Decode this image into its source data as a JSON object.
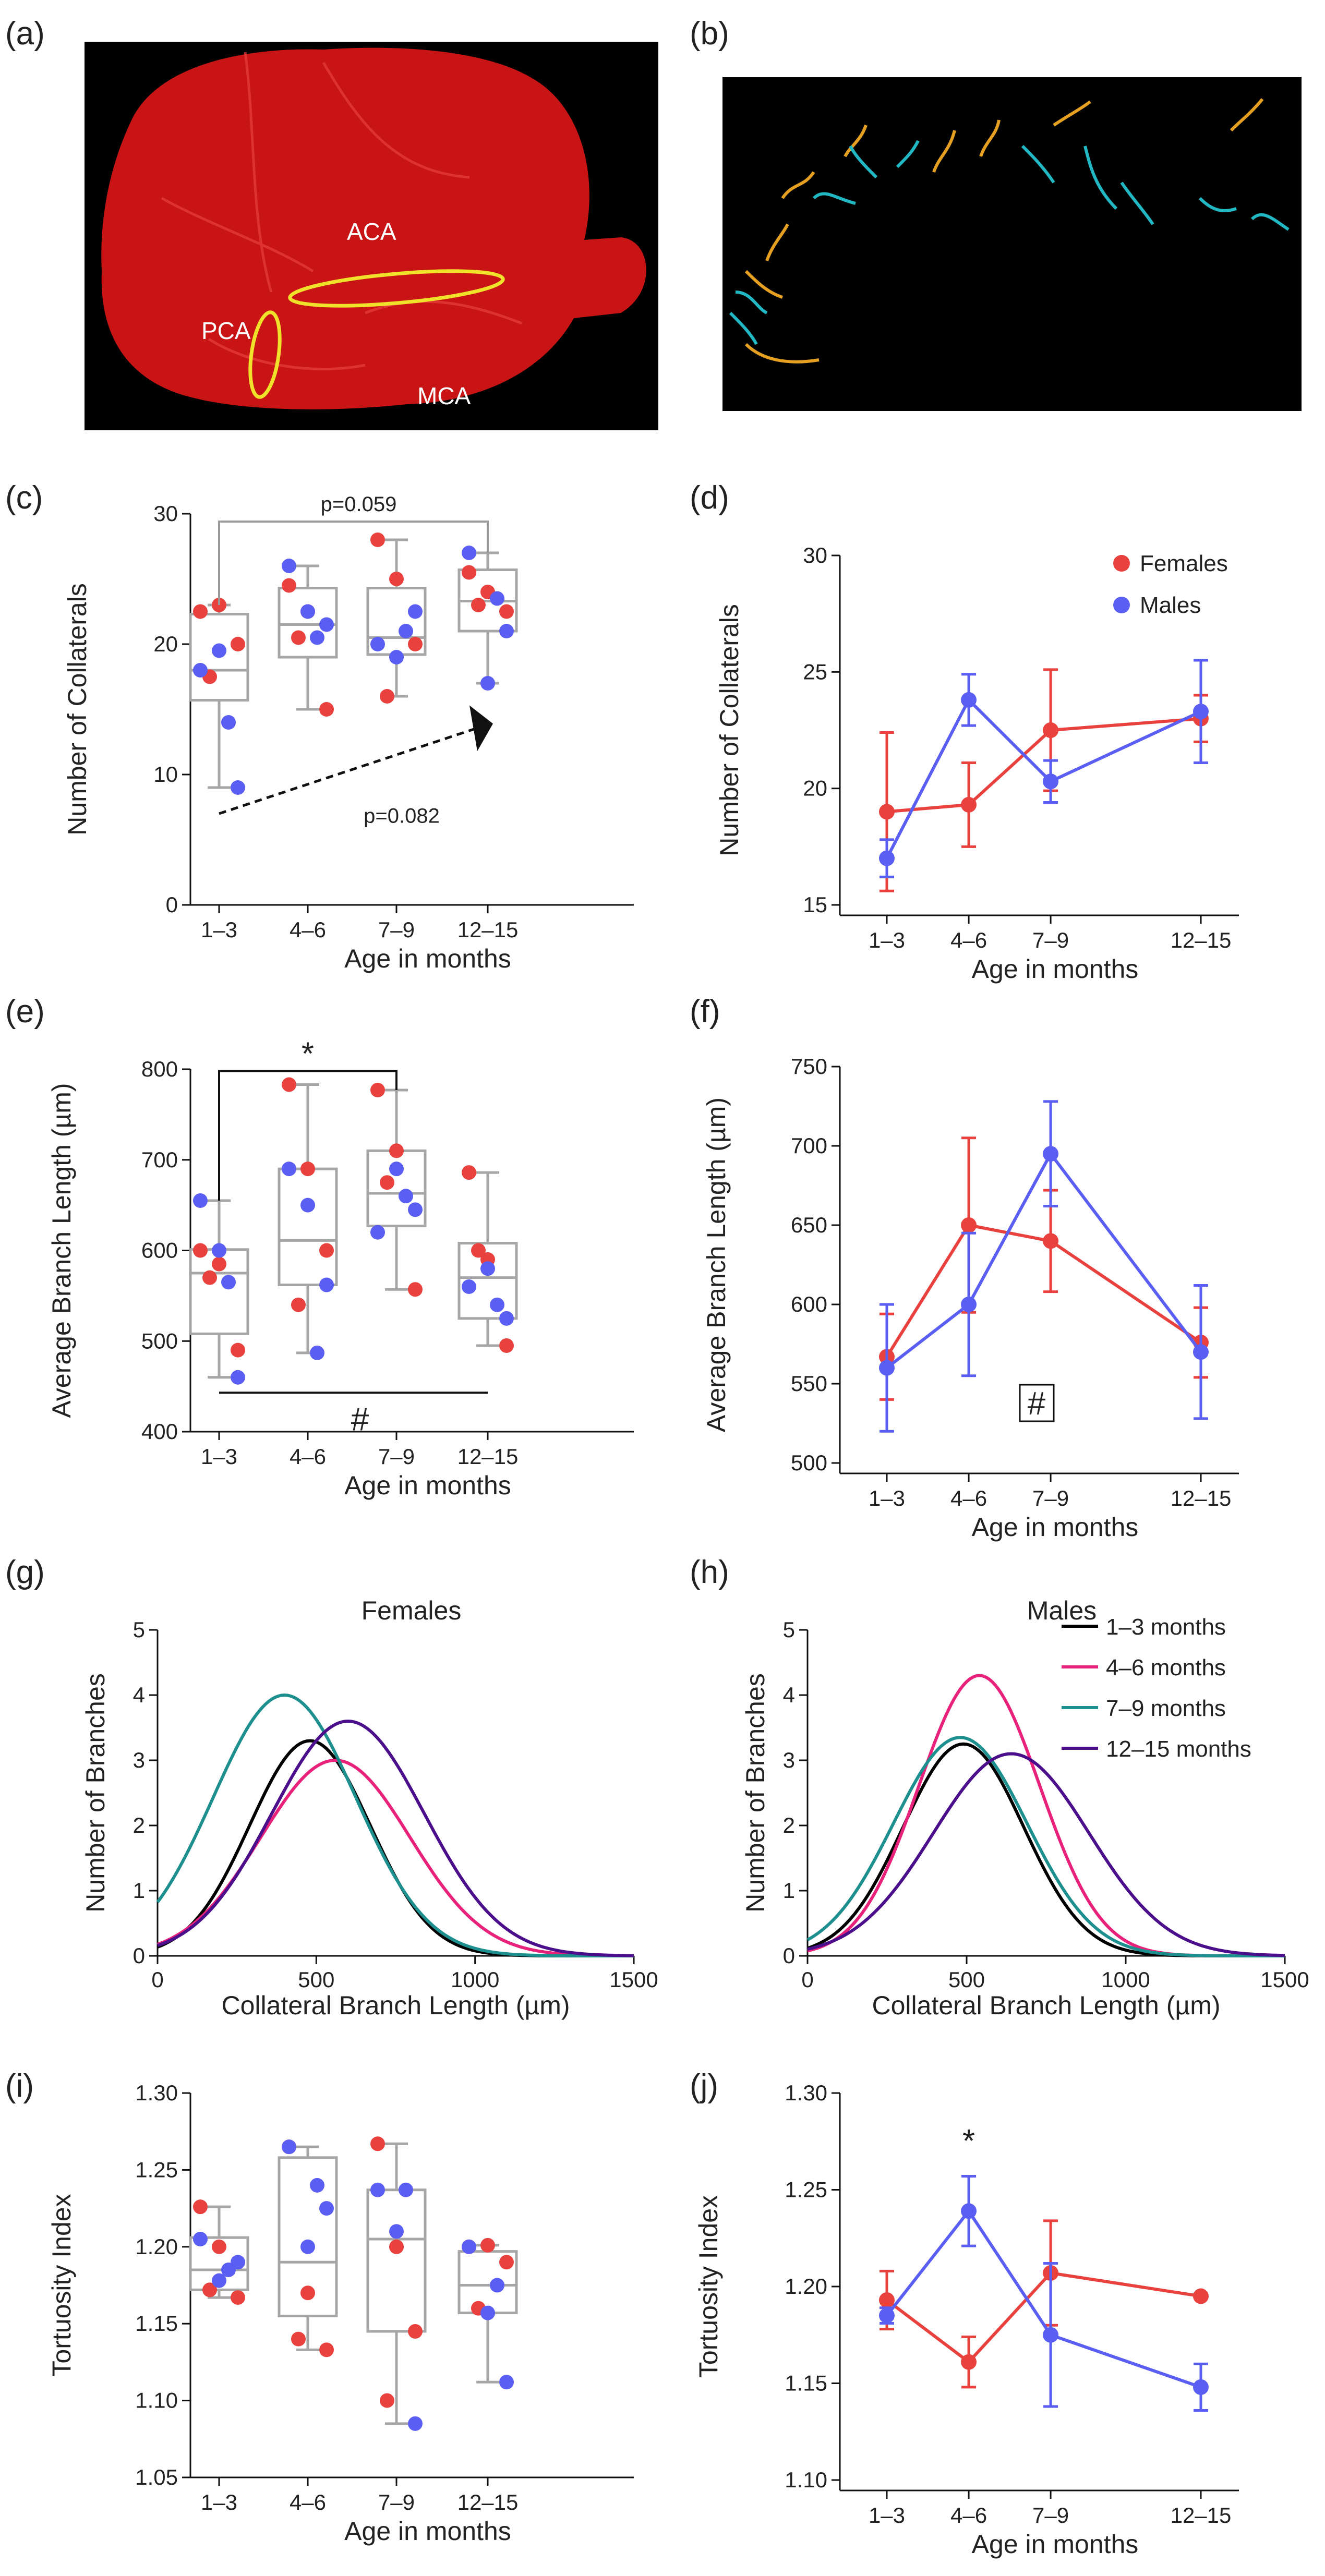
{
  "panels": {
    "a": {
      "label": "(a)",
      "regions": [
        "ACA",
        "PCA",
        "MCA"
      ]
    },
    "b": {
      "label": "(b)"
    }
  },
  "colors": {
    "female": "#e8413e",
    "male": "#5a5ef2",
    "box": "#a6a6a6",
    "bg_dark": "#000000",
    "tissue": "#c81414",
    "orange": "#e6a021",
    "cyan": "#21b7c3"
  },
  "chart_data": [
    {
      "id": "c",
      "label": "(c)",
      "type": "box_scatter",
      "xlabel": "Age in months",
      "ylabel": "Number of Collaterals",
      "categories": [
        "1–3",
        "4–6",
        "7–9",
        "12–15"
      ],
      "ylim": [
        0,
        30
      ],
      "yticks": [
        0,
        10,
        20,
        30
      ],
      "boxes": [
        {
          "min": 9,
          "q1": 15.7,
          "median": 18,
          "q3": 22.3,
          "max": 23
        },
        {
          "min": 15,
          "q1": 19,
          "median": 21.5,
          "q3": 24.3,
          "max": 26
        },
        {
          "min": 16,
          "q1": 19.2,
          "median": 20.5,
          "q3": 24.3,
          "max": 28
        },
        {
          "min": 17,
          "q1": 21,
          "median": 23.3,
          "q3": 25.7,
          "max": 27
        }
      ],
      "points": {
        "female": [
          [
            22.5,
            23,
            20,
            17.5
          ],
          [
            24.5,
            22.5,
            15,
            20.5
          ],
          [
            28,
            25,
            20,
            16
          ],
          [
            25.5,
            24,
            22.5,
            23
          ]
        ],
        "male": [
          [
            18,
            14,
            9,
            19.5
          ],
          [
            26,
            20.5,
            21.5,
            22.5
          ],
          [
            20,
            21,
            22.5,
            19
          ],
          [
            27,
            23.5,
            21,
            17
          ]
        ]
      },
      "annotations": {
        "bracket_text": "p=0.059",
        "trend_text": "p=0.082"
      }
    },
    {
      "id": "d",
      "label": "(d)",
      "type": "line",
      "xlabel": "Age in months",
      "ylabel": "Number of Collaterals",
      "categories": [
        "1–3",
        "4–6",
        "7–9",
        "12–15"
      ],
      "x": [
        2,
        5,
        8,
        13.5
      ],
      "ylim": [
        15,
        30
      ],
      "yticks": [
        15,
        20,
        25,
        30
      ],
      "series": [
        {
          "name": "Females",
          "color": "#e8413e",
          "values": [
            19,
            19.3,
            22.5,
            23
          ],
          "err": [
            3.4,
            1.8,
            2.6,
            1
          ]
        },
        {
          "name": "Males",
          "color": "#5a5ef2",
          "values": [
            17,
            23.8,
            20.3,
            23.3
          ],
          "err": [
            0.8,
            1.1,
            0.9,
            2.2
          ]
        }
      ],
      "legend": [
        "Females",
        "Males"
      ]
    },
    {
      "id": "e",
      "label": "(e)",
      "type": "box_scatter",
      "xlabel": "Age in months",
      "ylabel": "Average Branch Length (µm)",
      "categories": [
        "1–3",
        "4–6",
        "7–9",
        "12–15"
      ],
      "ylim": [
        400,
        800
      ],
      "yticks": [
        400,
        500,
        600,
        700,
        800
      ],
      "boxes": [
        {
          "min": 460,
          "q1": 508,
          "median": 575,
          "q3": 601,
          "max": 655
        },
        {
          "min": 487,
          "q1": 562,
          "median": 611,
          "q3": 690,
          "max": 783
        },
        {
          "min": 557,
          "q1": 627,
          "median": 663,
          "q3": 710,
          "max": 777
        },
        {
          "min": 495,
          "q1": 525,
          "median": 570,
          "q3": 608,
          "max": 686
        }
      ],
      "points": {
        "female": [
          [
            600,
            585,
            490,
            570
          ],
          [
            783,
            690,
            600,
            540
          ],
          [
            777,
            710,
            557,
            675
          ],
          [
            686,
            590,
            495,
            600
          ]
        ],
        "male": [
          [
            655,
            565,
            460,
            600
          ],
          [
            690,
            487,
            562,
            650
          ],
          [
            620,
            660,
            645,
            690
          ],
          [
            560,
            540,
            525,
            580
          ]
        ]
      },
      "annotations": {
        "star": "*",
        "hash": "#"
      }
    },
    {
      "id": "f",
      "label": "(f)",
      "type": "line",
      "xlabel": "Age in months",
      "ylabel": "Average Branch Length (µm)",
      "categories": [
        "1–3",
        "4–6",
        "7–9",
        "12–15"
      ],
      "x": [
        2,
        5,
        8,
        13.5
      ],
      "ylim": [
        500,
        750
      ],
      "yticks": [
        500,
        550,
        600,
        650,
        700,
        750
      ],
      "series": [
        {
          "name": "Females",
          "color": "#e8413e",
          "values": [
            567,
            650,
            640,
            576
          ],
          "err": [
            27,
            55,
            32,
            22
          ]
        },
        {
          "name": "Males",
          "color": "#5a5ef2",
          "values": [
            560,
            600,
            695,
            570
          ],
          "err": [
            40,
            45,
            33,
            42
          ]
        }
      ],
      "annotations": {
        "hash": "#"
      }
    },
    {
      "id": "g",
      "label": "(g)",
      "type": "line",
      "title": "Females",
      "xlabel": "Collateral Branch Length (µm)",
      "ylabel": "Number of Branches",
      "xlim": [
        0,
        1500
      ],
      "xticks": [
        0,
        500,
        1000,
        1500
      ],
      "ylim": [
        0,
        5
      ],
      "yticks": [
        0,
        1,
        2,
        3,
        4,
        5
      ],
      "series": [
        {
          "name": "1–3 months",
          "color": "#000000",
          "peak": 3.3,
          "mean": 480,
          "sd": 190
        },
        {
          "name": "4–6 months",
          "color": "#e8227a",
          "peak": 3.0,
          "mean": 560,
          "sd": 235
        },
        {
          "name": "7–9 months",
          "color": "#1e8f8f",
          "peak": 4.0,
          "mean": 400,
          "sd": 225
        },
        {
          "name": "12–15 months",
          "color": "#4b0f8c",
          "peak": 3.6,
          "mean": 600,
          "sd": 240
        }
      ]
    },
    {
      "id": "h",
      "label": "(h)",
      "type": "line",
      "title": "Males",
      "xlabel": "Collateral Branch Length (µm)",
      "ylabel": "Number of Branches",
      "xlim": [
        0,
        1500
      ],
      "xticks": [
        0,
        500,
        1000,
        1500
      ],
      "ylim": [
        0,
        5
      ],
      "yticks": [
        0,
        1,
        2,
        3,
        4,
        5
      ],
      "series": [
        {
          "name": "1–3 months",
          "color": "#000000",
          "peak": 3.25,
          "mean": 490,
          "sd": 190
        },
        {
          "name": "4–6 months",
          "color": "#e8227a",
          "peak": 4.3,
          "mean": 540,
          "sd": 190
        },
        {
          "name": "7–9 months",
          "color": "#1e8f8f",
          "peak": 3.35,
          "mean": 480,
          "sd": 210
        },
        {
          "name": "12–15 months",
          "color": "#4b0f8c",
          "peak": 3.1,
          "mean": 640,
          "sd": 245
        }
      ],
      "legend": [
        "1–3 months",
        "4–6 months",
        "7–9 months",
        "12–15 months"
      ]
    },
    {
      "id": "i",
      "label": "(i)",
      "type": "box_scatter",
      "xlabel": "Age in months",
      "ylabel": "Tortuosity Index",
      "categories": [
        "1–3",
        "4–6",
        "7–9",
        "12–15"
      ],
      "ylim": [
        1.05,
        1.3
      ],
      "yticks": [
        1.05,
        1.1,
        1.15,
        1.2,
        1.25,
        1.3
      ],
      "boxes": [
        {
          "min": 1.167,
          "q1": 1.172,
          "median": 1.185,
          "q3": 1.206,
          "max": 1.226
        },
        {
          "min": 1.133,
          "q1": 1.155,
          "median": 1.19,
          "q3": 1.258,
          "max": 1.265
        },
        {
          "min": 1.085,
          "q1": 1.145,
          "median": 1.205,
          "q3": 1.237,
          "max": 1.267
        },
        {
          "min": 1.112,
          "q1": 1.157,
          "median": 1.175,
          "q3": 1.197,
          "max": 1.201
        }
      ],
      "points": {
        "female": [
          [
            1.226,
            1.2,
            1.167,
            1.172
          ],
          [
            1.265,
            1.17,
            1.133,
            1.14
          ],
          [
            1.267,
            1.2,
            1.145,
            1.1
          ],
          [
            1.2,
            1.201,
            1.19,
            1.16
          ]
        ],
        "male": [
          [
            1.205,
            1.185,
            1.19,
            1.178
          ],
          [
            1.265,
            1.24,
            1.225,
            1.2
          ],
          [
            1.237,
            1.237,
            1.085,
            1.21
          ],
          [
            1.2,
            1.175,
            1.112,
            1.157
          ]
        ]
      }
    },
    {
      "id": "j",
      "label": "(j)",
      "type": "line",
      "xlabel": "Age in months",
      "ylabel": "Tortuosity Index",
      "categories": [
        "1–3",
        "4–6",
        "7–9",
        "12–15"
      ],
      "x": [
        2,
        5,
        8,
        13.5
      ],
      "ylim": [
        1.1,
        1.3
      ],
      "yticks": [
        1.1,
        1.15,
        1.2,
        1.25,
        1.3
      ],
      "series": [
        {
          "name": "Females",
          "color": "#e8413e",
          "values": [
            1.193,
            1.161,
            1.207,
            1.195
          ],
          "err": [
            0.015,
            0.013,
            0.027,
            0
          ]
        },
        {
          "name": "Males",
          "color": "#5a5ef2",
          "values": [
            1.185,
            1.239,
            1.175,
            1.148
          ],
          "err": [
            0.004,
            0.018,
            0.037,
            0.012
          ]
        }
      ],
      "annotations": {
        "star": "*"
      }
    }
  ]
}
